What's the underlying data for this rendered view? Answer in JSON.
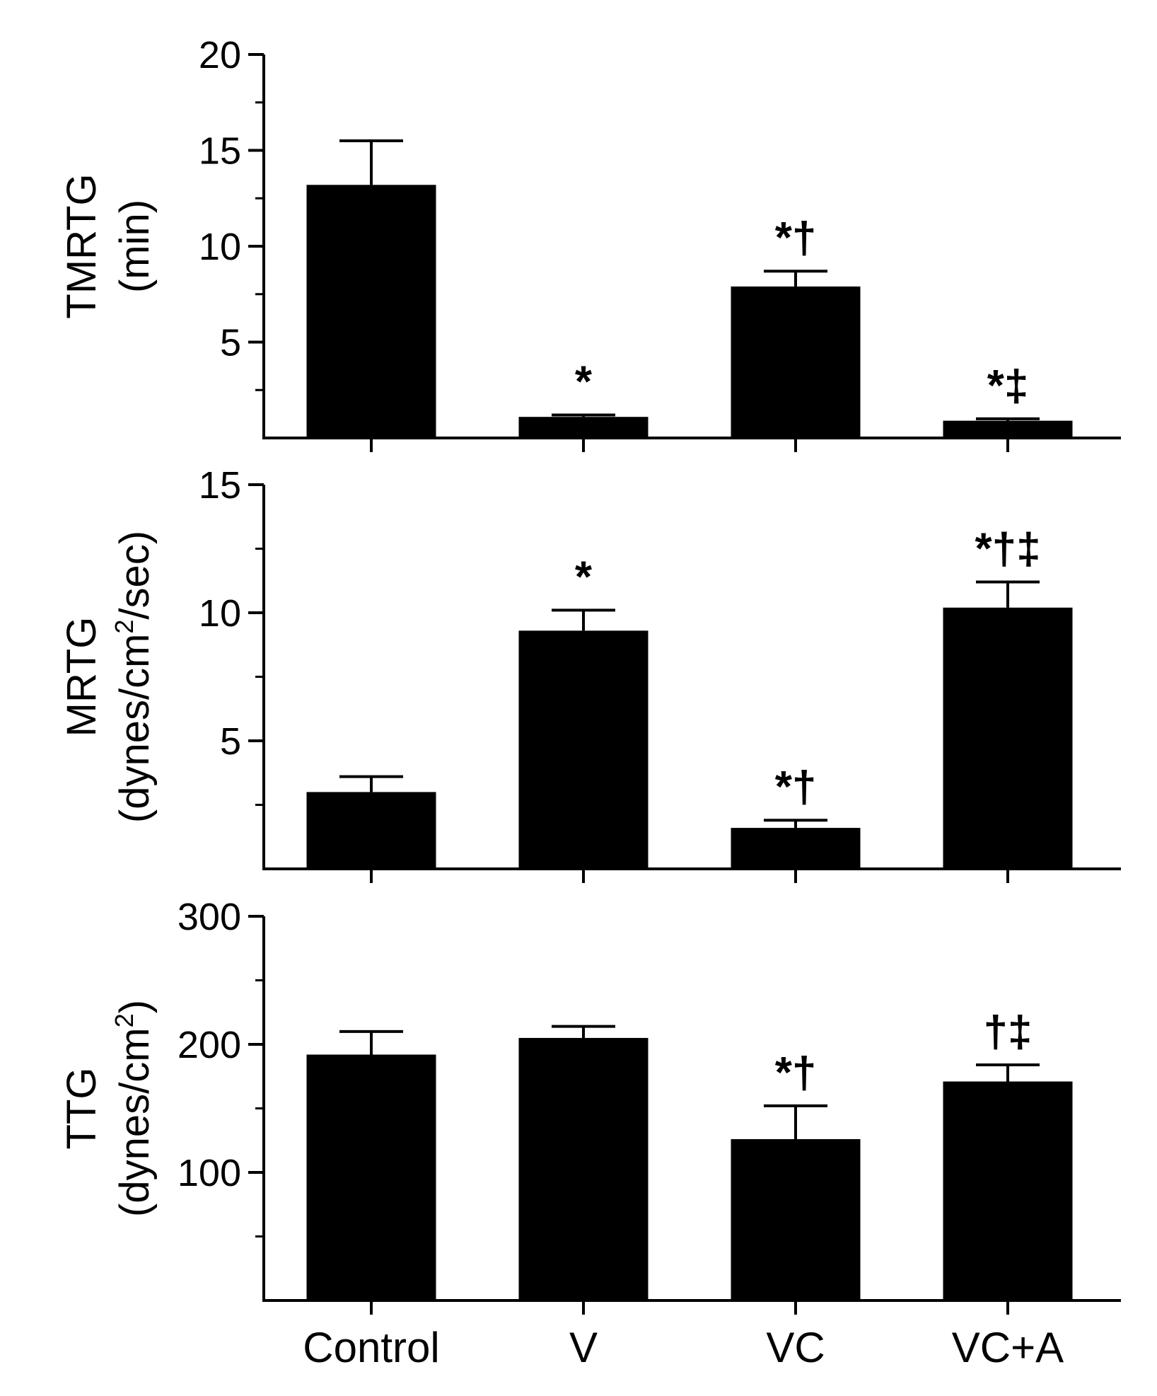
{
  "categories": [
    "Control",
    "V",
    "VC",
    "VC+A"
  ],
  "colors": {
    "bar": "#000000",
    "axis": "#000000",
    "background": "#ffffff"
  },
  "chart_data": [
    {
      "type": "bar",
      "title": "",
      "ylabel_lines": [
        "TMRTG",
        "(min)"
      ],
      "ylim": [
        0,
        20
      ],
      "major_ticks": [
        5,
        10,
        15,
        20
      ],
      "minor_ticks": [
        2.5,
        7.5,
        12.5,
        17.5
      ],
      "tick_labels": [
        "5",
        "10",
        "15",
        "20"
      ],
      "categories": [
        "Control",
        "V",
        "VC",
        "VC+A"
      ],
      "values": [
        13.2,
        1.1,
        7.9,
        0.9
      ],
      "errors": [
        2.3,
        0.1,
        0.8,
        0.1
      ],
      "annotations": [
        "",
        "*",
        "*†",
        "*‡"
      ]
    },
    {
      "type": "bar",
      "title": "",
      "ylabel_lines": [
        "MRTG",
        "(dynes/cm",
        "2",
        "/sec)"
      ],
      "ylim": [
        0,
        15
      ],
      "major_ticks": [
        5,
        10,
        15
      ],
      "minor_ticks": [
        2.5,
        7.5,
        12.5
      ],
      "tick_labels": [
        "5",
        "10",
        "15"
      ],
      "categories": [
        "Control",
        "V",
        "VC",
        "VC+A"
      ],
      "values": [
        3.0,
        9.3,
        1.6,
        10.2
      ],
      "errors": [
        0.6,
        0.8,
        0.3,
        1.0
      ],
      "annotations": [
        "",
        "*",
        "*†",
        "*†‡"
      ]
    },
    {
      "type": "bar",
      "title": "",
      "ylabel_lines": [
        "TTG",
        "(dynes/cm",
        "2",
        ")"
      ],
      "ylim": [
        0,
        300
      ],
      "major_ticks": [
        100,
        200,
        300
      ],
      "minor_ticks": [
        50,
        150,
        250
      ],
      "tick_labels": [
        "100",
        "200",
        "300"
      ],
      "categories": [
        "Control",
        "V",
        "VC",
        "VC+A"
      ],
      "values": [
        192,
        205,
        126,
        171
      ],
      "errors": [
        18,
        9,
        26,
        13
      ],
      "annotations": [
        "",
        "",
        "*†",
        "†‡"
      ]
    }
  ]
}
